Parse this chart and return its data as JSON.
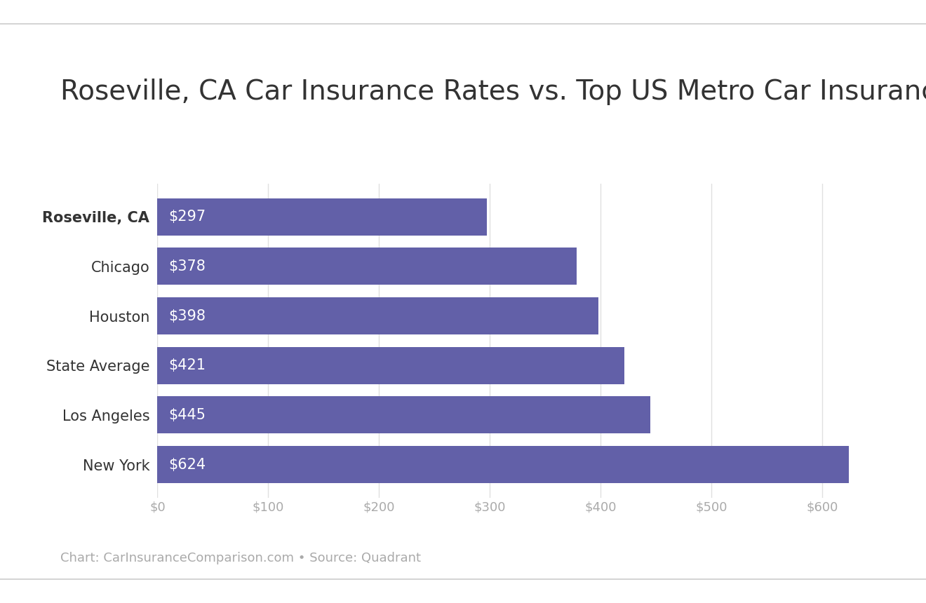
{
  "title": "Roseville, CA Car Insurance Rates vs. Top US Metro Car Insurance Rates",
  "categories": [
    "Roseville, CA",
    "Chicago",
    "Houston",
    "State Average",
    "Los Angeles",
    "New York"
  ],
  "values": [
    297,
    378,
    398,
    421,
    445,
    624
  ],
  "bar_labels": [
    "$297",
    "$378",
    "$398",
    "$421",
    "$445",
    "$624"
  ],
  "bar_color": "#6260a8",
  "background_color": "#ffffff",
  "title_fontsize": 28,
  "label_fontsize": 15,
  "tick_fontsize": 13,
  "annotation_fontsize": 15,
  "caption": "Chart: CarInsuranceComparison.com • Source: Quadrant",
  "caption_fontsize": 13,
  "xlim": [
    0,
    660
  ],
  "xticks": [
    0,
    100,
    200,
    300,
    400,
    500,
    600
  ],
  "top_line_color": "#cccccc",
  "bottom_line_color": "#cccccc"
}
